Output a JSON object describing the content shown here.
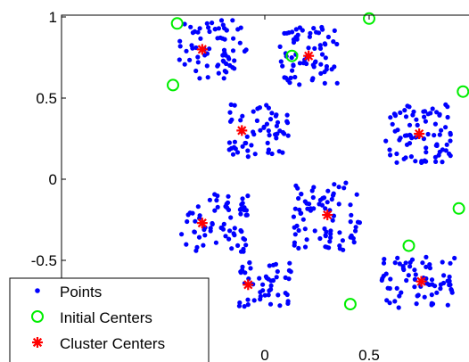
{
  "chart_data": {
    "type": "scatter",
    "title": "",
    "xlabel": "",
    "ylabel": "",
    "xlim": [
      -0.5,
      0.95
    ],
    "ylim": [
      -0.78,
      1.0
    ],
    "x_ticks": [
      0,
      0.5
    ],
    "x_tick_labels": [
      "0",
      "0.5"
    ],
    "y_ticks": [
      1,
      0.5,
      0,
      -0.5
    ],
    "y_tick_labels": [
      "1",
      "0.5",
      "0",
      "-0.5"
    ],
    "grid": false,
    "legend_position": "bottom-left",
    "colors": {
      "points": "#0000ff",
      "initial": "#00ee00",
      "centers": "#ff0000"
    },
    "point_clusters": [
      {
        "cx": -0.25,
        "cy": 0.8,
        "sx": 0.09,
        "sy": 0.1,
        "n": 70
      },
      {
        "cx": 0.21,
        "cy": 0.76,
        "sx": 0.08,
        "sy": 0.1,
        "n": 70
      },
      {
        "cx": -0.03,
        "cy": 0.3,
        "sx": 0.08,
        "sy": 0.09,
        "n": 60
      },
      {
        "cx": 0.74,
        "cy": 0.28,
        "sx": 0.09,
        "sy": 0.1,
        "n": 80
      },
      {
        "cx": -0.24,
        "cy": -0.27,
        "sx": 0.09,
        "sy": 0.1,
        "n": 70
      },
      {
        "cx": 0.3,
        "cy": -0.22,
        "sx": 0.09,
        "sy": 0.12,
        "n": 80
      },
      {
        "cx": 0.0,
        "cy": -0.65,
        "sx": 0.07,
        "sy": 0.08,
        "n": 50
      },
      {
        "cx": 0.74,
        "cy": -0.63,
        "sx": 0.1,
        "sy": 0.09,
        "n": 70
      }
    ],
    "series": [
      {
        "name": "Initial Centers",
        "points": [
          [
            -0.42,
            0.96
          ],
          [
            -0.44,
            0.58
          ],
          [
            0.5,
            0.99
          ],
          [
            0.13,
            0.76
          ],
          [
            0.95,
            0.54
          ],
          [
            0.93,
            -0.18
          ],
          [
            0.69,
            -0.41
          ],
          [
            0.41,
            -0.77
          ]
        ]
      },
      {
        "name": "Cluster Centers",
        "points": [
          [
            -0.3,
            0.8
          ],
          [
            0.21,
            0.76
          ],
          [
            -0.11,
            0.3
          ],
          [
            0.74,
            0.28
          ],
          [
            -0.3,
            -0.27
          ],
          [
            0.3,
            -0.22
          ],
          [
            -0.08,
            -0.65
          ],
          [
            0.75,
            -0.63
          ]
        ]
      }
    ],
    "legend": [
      "Points",
      "Initial Centers",
      "Cluster Centers"
    ]
  }
}
